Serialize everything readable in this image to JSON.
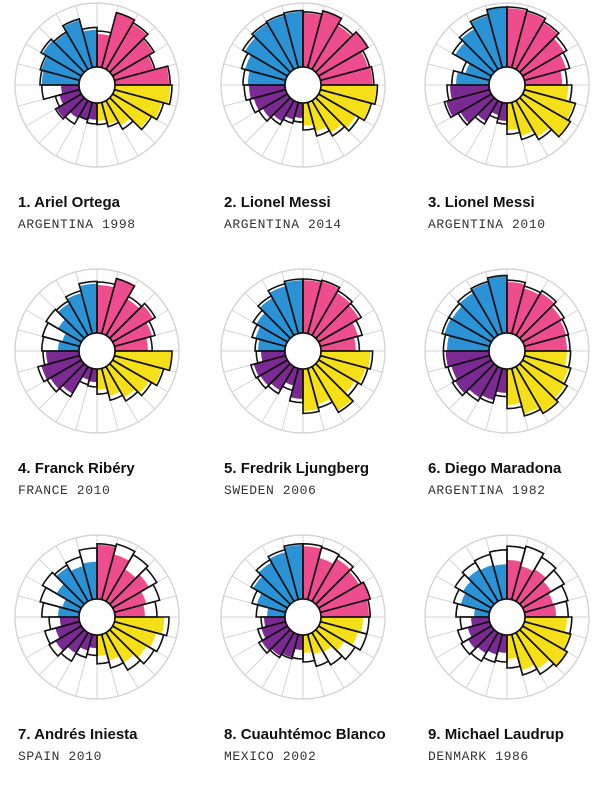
{
  "chart_data": {
    "type": "radial-bar",
    "rings": 6,
    "colors": {
      "attacking": "#ee4d8d",
      "dribbling": "#f5df18",
      "defending": "#7a2a92",
      "passing": "#2b92d6",
      "outline": "#111111",
      "guide": "#d4d4d4"
    },
    "players": [
      {
        "rank": "1.",
        "name": "Ariel Ortega",
        "team": "ARGENTINA 1998",
        "values": [
          0.55,
          0.95,
          0.88,
          0.78,
          0.68,
          0.9,
          0.92,
          0.82,
          0.72,
          0.48,
          0.38,
          0.3,
          0.28,
          0.3,
          0.34,
          0.48,
          0.35,
          0.3,
          0.62,
          0.66,
          0.75,
          0.7,
          0.82,
          0.62
        ],
        "outlines": [
          0.6,
          0.95,
          0.9,
          0.8,
          0.7,
          0.92,
          0.95,
          0.85,
          0.75,
          0.55,
          0.42,
          0.36,
          0.35,
          0.3,
          0.45,
          0.5,
          0.42,
          0.62,
          0.65,
          0.68,
          0.78,
          0.72,
          0.84,
          0.66
        ]
      },
      {
        "rank": "2.",
        "name": "Lionel Messi",
        "team": "ARGENTINA 2014",
        "values": [
          0.9,
          0.98,
          0.85,
          0.95,
          0.82,
          0.86,
          0.92,
          0.86,
          0.72,
          0.62,
          0.5,
          0.38,
          0.25,
          0.3,
          0.4,
          0.48,
          0.55,
          0.6,
          0.62,
          0.7,
          0.82,
          0.88,
          0.9,
          0.92
        ],
        "outlines": [
          0.92,
          0.98,
          0.88,
          0.95,
          0.85,
          0.88,
          0.94,
          0.88,
          0.78,
          0.68,
          0.58,
          0.45,
          0.32,
          0.36,
          0.46,
          0.55,
          0.62,
          0.68,
          0.7,
          0.76,
          0.86,
          0.9,
          0.92,
          0.94
        ]
      },
      {
        "rank": "3.",
        "name": "Lionel Messi",
        "team": "ARGENTINA 2010",
        "values": [
          0.98,
          0.96,
          0.9,
          0.8,
          0.72,
          0.62,
          0.72,
          0.85,
          0.9,
          0.7,
          0.58,
          0.45,
          0.3,
          0.22,
          0.4,
          0.6,
          0.75,
          0.65,
          0.55,
          0.42,
          0.7,
          0.78,
          0.9,
          1.0
        ],
        "outlines": [
          1.0,
          0.98,
          0.92,
          0.85,
          0.78,
          0.7,
          0.78,
          0.88,
          0.92,
          0.75,
          0.64,
          0.52,
          0.35,
          0.28,
          0.45,
          0.64,
          0.78,
          0.7,
          0.62,
          0.48,
          0.75,
          0.82,
          0.92,
          1.0
        ]
      },
      {
        "rank": "4.",
        "name": "Franck Ribéry",
        "team": "FRANCE 2010",
        "values": [
          0.8,
          0.95,
          0.7,
          0.78,
          0.65,
          0.55,
          0.95,
          0.82,
          0.7,
          0.6,
          0.48,
          0.35,
          0.22,
          0.2,
          0.52,
          0.6,
          0.66,
          0.55,
          0.35,
          0.3,
          0.45,
          0.62,
          0.7,
          0.82
        ],
        "outlines": [
          0.85,
          0.95,
          0.75,
          0.82,
          0.7,
          0.62,
          0.95,
          0.85,
          0.75,
          0.66,
          0.55,
          0.42,
          0.3,
          0.28,
          0.58,
          0.66,
          0.72,
          0.6,
          0.62,
          0.64,
          0.68,
          0.66,
          0.74,
          0.86
        ]
      },
      {
        "rank": "5.",
        "name": "Fredrik Ljungberg",
        "team": "SWEDEN 2006",
        "values": [
          0.88,
          0.9,
          0.82,
          0.78,
          0.65,
          0.58,
          0.82,
          0.78,
          0.7,
          0.85,
          0.62,
          0.7,
          0.5,
          0.3,
          0.46,
          0.52,
          0.55,
          0.4,
          0.45,
          0.52,
          0.6,
          0.72,
          0.82,
          0.88
        ],
        "outlines": [
          0.9,
          0.92,
          0.86,
          0.82,
          0.72,
          0.64,
          0.86,
          0.82,
          0.76,
          0.88,
          0.68,
          0.74,
          0.56,
          0.38,
          0.52,
          0.58,
          0.6,
          0.48,
          0.5,
          0.58,
          0.66,
          0.76,
          0.86,
          0.9
        ]
      },
      {
        "rank": "6.",
        "name": "Diego Maradona",
        "team": "ARGENTINA 1982",
        "values": [
          0.85,
          0.78,
          0.82,
          0.75,
          0.72,
          0.7,
          0.7,
          0.76,
          0.82,
          0.88,
          0.78,
          0.6,
          0.4,
          0.55,
          0.6,
          0.7,
          0.66,
          0.72,
          0.7,
          0.78,
          0.76,
          0.82,
          0.88,
          0.95
        ],
        "outlines": [
          0.88,
          0.82,
          0.86,
          0.8,
          0.76,
          0.75,
          0.76,
          0.8,
          0.86,
          0.9,
          0.82,
          0.66,
          0.46,
          0.6,
          0.66,
          0.75,
          0.72,
          0.76,
          0.76,
          0.82,
          0.82,
          0.86,
          0.9,
          0.96
        ]
      },
      {
        "rank": "7.",
        "name": "Andrés Iniesta",
        "team": "SPAIN 2010",
        "values": [
          0.9,
          0.78,
          0.62,
          0.7,
          0.55,
          0.5,
          0.82,
          0.72,
          0.66,
          0.58,
          0.45,
          0.35,
          0.22,
          0.28,
          0.4,
          0.5,
          0.42,
          0.32,
          0.35,
          0.3,
          0.48,
          0.66,
          0.58,
          0.62
        ],
        "outlines": [
          0.92,
          0.96,
          0.9,
          0.85,
          0.78,
          0.7,
          0.9,
          0.85,
          0.8,
          0.72,
          0.58,
          0.48,
          0.34,
          0.4,
          0.55,
          0.62,
          0.6,
          0.5,
          0.62,
          0.68,
          0.75,
          0.7,
          0.74,
          0.85
        ]
      },
      {
        "rank": "8.",
        "name": "Cuauhtémoc Blanco",
        "team": "MEXICO 2002",
        "values": [
          0.88,
          0.72,
          0.82,
          0.78,
          0.85,
          0.8,
          0.7,
          0.65,
          0.5,
          0.38,
          0.35,
          0.3,
          0.25,
          0.4,
          0.45,
          0.5,
          0.42,
          0.35,
          0.3,
          0.5,
          0.66,
          0.75,
          0.82,
          0.9
        ],
        "outlines": [
          0.92,
          0.9,
          0.88,
          0.82,
          0.86,
          0.82,
          0.8,
          0.8,
          0.7,
          0.62,
          0.55,
          0.45,
          0.4,
          0.42,
          0.48,
          0.55,
          0.48,
          0.4,
          0.48,
          0.58,
          0.7,
          0.8,
          0.86,
          0.92
        ]
      },
      {
        "rank": "9.",
        "name": "Michael Laudrup",
        "team": "DENMARK 1986",
        "values": [
          0.65,
          0.58,
          0.62,
          0.55,
          0.5,
          0.52,
          0.7,
          0.78,
          0.85,
          0.7,
          0.62,
          0.4,
          0.3,
          0.35,
          0.4,
          0.45,
          0.38,
          0.3,
          0.25,
          0.5,
          0.55,
          0.62,
          0.6,
          0.58
        ],
        "outlines": [
          0.88,
          0.92,
          0.85,
          0.8,
          0.75,
          0.72,
          0.78,
          0.8,
          0.86,
          0.8,
          0.7,
          0.55,
          0.45,
          0.48,
          0.55,
          0.58,
          0.55,
          0.48,
          0.55,
          0.62,
          0.7,
          0.75,
          0.78,
          0.82
        ]
      }
    ]
  }
}
